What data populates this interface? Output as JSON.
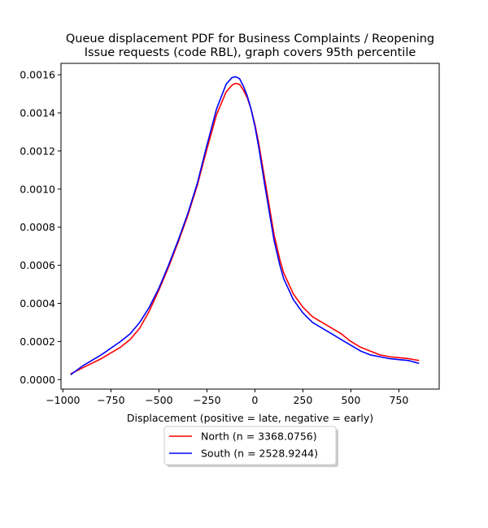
{
  "chart_data": {
    "type": "line",
    "title_lines": [
      "Queue displacement PDF for Business Complaints / Reopening",
      "Issue  requests (code RBL), graph covers 95th percentile"
    ],
    "xlabel": "Displacement (positive = late, negative = early)",
    "ylabel": "",
    "xlim": [
      -1010,
      960
    ],
    "ylim": [
      -5e-05,
      0.00166
    ],
    "x_ticks": [
      -1000,
      -750,
      -500,
      -250,
      0,
      250,
      500,
      750
    ],
    "x_tick_labels": [
      "−1000",
      "−750",
      "−500",
      "−250",
      "0",
      "250",
      "500",
      "750"
    ],
    "y_ticks": [
      0.0,
      0.0002,
      0.0004,
      0.0006,
      0.0008,
      0.001,
      0.0012,
      0.0014,
      0.0016
    ],
    "y_tick_labels": [
      "0.0000",
      "0.0002",
      "0.0004",
      "0.0006",
      "0.0008",
      "0.0010",
      "0.0012",
      "0.0014",
      "0.0016"
    ],
    "grid": false,
    "legend_position": "below-center",
    "series": [
      {
        "name": "North (n = 3368.0756)",
        "color": "#ff0000",
        "x": [
          -960,
          -900,
          -800,
          -700,
          -650,
          -600,
          -550,
          -500,
          -450,
          -400,
          -350,
          -300,
          -250,
          -200,
          -150,
          -120,
          -100,
          -80,
          -60,
          -40,
          -20,
          0,
          20,
          50,
          80,
          100,
          130,
          150,
          200,
          250,
          300,
          350,
          400,
          450,
          500,
          550,
          600,
          650,
          700,
          750,
          800,
          855
        ],
        "y": [
          3e-05,
          6e-05,
          0.00011,
          0.00017,
          0.00021,
          0.00027,
          0.00036,
          0.00047,
          0.00059,
          0.00072,
          0.00086,
          0.00102,
          0.00121,
          0.00139,
          0.00151,
          0.001545,
          0.001555,
          0.00155,
          0.00152,
          0.00148,
          0.00142,
          0.00134,
          0.00124,
          0.00106,
          0.00088,
          0.00076,
          0.00063,
          0.00056,
          0.00045,
          0.00038,
          0.00033,
          0.0003,
          0.00027,
          0.00024,
          0.0002,
          0.00017,
          0.00015,
          0.00013,
          0.00012,
          0.000115,
          0.00011,
          0.0001
        ]
      },
      {
        "name": "South (n = 2528.9244)",
        "color": "#0000ff",
        "x": [
          -960,
          -900,
          -800,
          -700,
          -650,
          -600,
          -550,
          -500,
          -450,
          -400,
          -350,
          -300,
          -250,
          -200,
          -150,
          -120,
          -100,
          -80,
          -60,
          -40,
          -20,
          0,
          20,
          50,
          80,
          100,
          130,
          150,
          200,
          250,
          300,
          350,
          400,
          450,
          500,
          550,
          600,
          650,
          700,
          750,
          800,
          855
        ],
        "y": [
          2.5e-05,
          7e-05,
          0.00013,
          0.0002,
          0.00024,
          0.0003,
          0.00038,
          0.00048,
          0.0006,
          0.00073,
          0.00087,
          0.00103,
          0.00123,
          0.00142,
          0.00155,
          0.001585,
          0.00159,
          0.00158,
          0.00154,
          0.00149,
          0.00142,
          0.00133,
          0.00122,
          0.00103,
          0.00085,
          0.00073,
          0.0006,
          0.00053,
          0.00042,
          0.00035,
          0.0003,
          0.00027,
          0.00024,
          0.00021,
          0.00018,
          0.00015,
          0.00013,
          0.00012,
          0.00011,
          0.000105,
          0.0001,
          8.5e-05
        ]
      }
    ]
  }
}
